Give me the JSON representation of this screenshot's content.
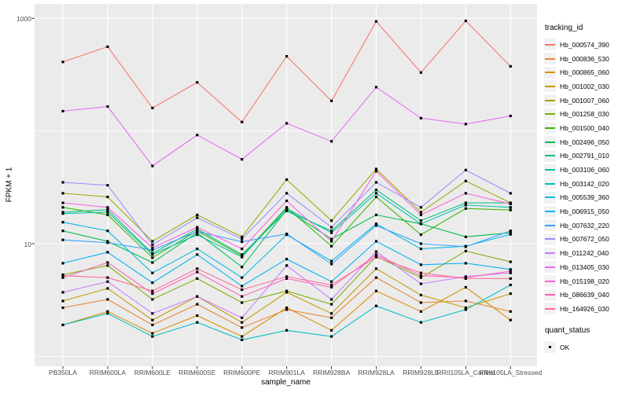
{
  "figure": {
    "background": "#FFFFFF",
    "panel_background": "#EBEBEB",
    "grid_color": "#FFFFFF",
    "tick_color": "#333333",
    "tick_label_color": "#4D4D4D",
    "point_color": "#000000",
    "legend_key_background": "#F2F2F2"
  },
  "chart_data": {
    "type": "line",
    "title": "",
    "xlabel": "sample_name",
    "ylabel": "FPKM + 1",
    "y_scale": "log10",
    "grid": true,
    "legend_position": "right",
    "y_tick_values": [
      1000,
      10
    ],
    "y_tick_labels": [
      "1000",
      "10"
    ],
    "y_major_gridlines": [
      1000,
      10
    ],
    "y_minor_gridlines": [
      100,
      1
    ],
    "y_range_approx": [
      0.8,
      1350
    ],
    "categories": [
      "PB350LA",
      "RRIM600LA",
      "RRIM600LE",
      "RRIM600SE",
      "RRIM600PE",
      "RRIM901LA",
      "RRIM928BA",
      "RRIM928LA",
      "RRIM928LE",
      "RRII105LA_Control",
      "RRII105LA_Stressed"
    ],
    "legend": {
      "title": "tracking_id"
    },
    "quant_legend": {
      "title": "quant_status",
      "items": [
        "OK"
      ],
      "marker": "black-square"
    },
    "series": [
      {
        "name": "Hb_000574_390",
        "color": "#F8766D",
        "values": [
          410,
          560,
          160,
          270,
          120,
          460,
          185,
          940,
          330,
          950,
          375
        ]
      },
      {
        "name": "Hb_000836_530",
        "color": "#EA8331",
        "values": [
          2.7,
          3.2,
          1.9,
          2.9,
          1.8,
          2.6,
          2.2,
          5.0,
          3.0,
          3.1,
          2.5
        ]
      },
      {
        "name": "Hb_000865_060",
        "color": "#D89000",
        "values": [
          1.9,
          2.5,
          1.6,
          2.3,
          1.5,
          2.7,
          1.7,
          3.8,
          2.5,
          4.1,
          2.1
        ]
      },
      {
        "name": "Hb_001002_030",
        "color": "#C09B00",
        "values": [
          3.1,
          4.0,
          2.1,
          3.4,
          2.0,
          3.7,
          2.4,
          6.0,
          3.5,
          2.7,
          3.6
        ]
      },
      {
        "name": "Hb_001007_060",
        "color": "#A3A500",
        "values": [
          28,
          26,
          10.5,
          18,
          11.5,
          37,
          16,
          46,
          19,
          36,
          23
        ]
      },
      {
        "name": "Hb_001258_030",
        "color": "#7CAE00",
        "values": [
          5.3,
          6.4,
          3.2,
          4.9,
          3.0,
          3.8,
          2.9,
          7.7,
          5.0,
          8.6,
          6.9
        ]
      },
      {
        "name": "Hb_001500_040",
        "color": "#39B600",
        "values": [
          21,
          18,
          7.5,
          13,
          7.8,
          21,
          9.5,
          26,
          12,
          20.5,
          19.9
        ]
      },
      {
        "name": "Hb_002496_050",
        "color": "#00BB4E",
        "values": [
          13,
          10.5,
          6.8,
          12.5,
          6.2,
          20,
          11,
          18,
          15,
          11.5,
          12.5
        ]
      },
      {
        "name": "Hb_002791_010",
        "color": "#00BF7D",
        "values": [
          19,
          20,
          8.2,
          13.5,
          8.0,
          19.5,
          13,
          30,
          16,
          23,
          23
        ]
      },
      {
        "name": "Hb_003106_060",
        "color": "#00C1A3",
        "values": [
          18.5,
          19,
          8.0,
          12,
          7.6,
          20.5,
          12.5,
          28,
          15,
          22,
          21
        ]
      },
      {
        "name": "Hb_003142_020",
        "color": "#00BFC4",
        "values": [
          1.9,
          2.4,
          1.5,
          2.0,
          1.4,
          1.7,
          1.5,
          2.8,
          2.0,
          2.6,
          4.3
        ]
      },
      {
        "name": "Hb_005539_360",
        "color": "#00BAE0",
        "values": [
          15.5,
          13,
          5.5,
          9.0,
          5.0,
          12,
          7.0,
          15,
          9.0,
          9.5,
          12.1
        ]
      },
      {
        "name": "Hb_006915_050",
        "color": "#00B0F6",
        "values": [
          6.7,
          8.4,
          4.5,
          8.0,
          4.2,
          7.3,
          4.6,
          10.5,
          6.5,
          6.7,
          5.9
        ]
      },
      {
        "name": "Hb_007632_220",
        "color": "#35A2FF",
        "values": [
          10.8,
          10.2,
          8.8,
          12.8,
          10.4,
          12.2,
          6.6,
          14.5,
          10.0,
          9.4,
          13.0
        ]
      },
      {
        "name": "Hb_007672_050",
        "color": "#9590FF",
        "values": [
          35,
          33,
          9.8,
          17,
          11,
          28,
          14,
          35,
          21,
          45,
          28
        ]
      },
      {
        "name": "Hb_011242_040",
        "color": "#C77CFF",
        "values": [
          3.7,
          4.6,
          2.4,
          3.4,
          2.2,
          6.4,
          3.2,
          8.5,
          4.4,
          5.1,
          5.5
        ]
      },
      {
        "name": "Hb_013405_030",
        "color": "#E76BF3",
        "values": [
          150,
          165,
          49,
          92,
          56,
          117,
          81,
          245,
          130,
          115,
          136
        ]
      },
      {
        "name": "Hb_015198_020",
        "color": "#FA62DB",
        "values": [
          23,
          21,
          9.2,
          14,
          9.0,
          24,
          10.5,
          44,
          18,
          28,
          22.5
        ]
      },
      {
        "name": "Hb_086639_040",
        "color": "#FF62BC",
        "values": [
          5.0,
          6.8,
          3.6,
          5.6,
          3.4,
          4.9,
          4.1,
          8.0,
          5.2,
          5.0,
          5.7
        ]
      },
      {
        "name": "Hb_164926_030",
        "color": "#FF6A98",
        "values": [
          5.2,
          5.0,
          3.8,
          6.0,
          3.9,
          5.1,
          4.3,
          7.6,
          5.5,
          4.9,
          4.9
        ]
      }
    ]
  }
}
